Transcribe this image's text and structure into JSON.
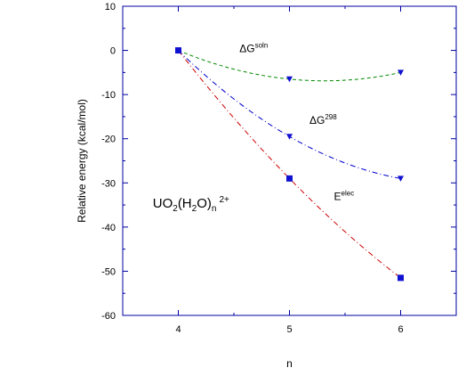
{
  "chart_data": {
    "type": "scatter",
    "xlabel": "n",
    "ylabel": "Relative energy (kcal/mol)",
    "xlim": [
      3.5,
      6.5
    ],
    "ylim": [
      -60,
      10
    ],
    "x_ticks": [
      4,
      5,
      6
    ],
    "y_ticks": [
      10,
      0,
      -10,
      -20,
      -30,
      -40,
      -50,
      -60
    ],
    "grid": false,
    "legend": "none",
    "series": [
      {
        "x": [
          4,
          5,
          6
        ],
        "y": [
          0,
          -6.5,
          -5.0
        ],
        "marker": "triangle-down",
        "marker_color": "#1010d0",
        "line_color": "#008800",
        "line_style": "dashed"
      },
      {
        "x": [
          4,
          5,
          6
        ],
        "y": [
          0,
          -19.5,
          -29.0
        ],
        "marker": "triangle-down",
        "marker_color": "#1010d0",
        "line_color": "#0000cc",
        "line_style": "dash-dot"
      },
      {
        "x": [
          4,
          5,
          6
        ],
        "y": [
          0,
          -29.0,
          -51.5
        ],
        "marker": "square",
        "marker_color": "#1010d0",
        "line_color": "#cc0000",
        "line_style": "dash-dot"
      }
    ],
    "annotations": [
      {
        "base": "ΔG",
        "sup": "soln",
        "x": 4.55,
        "y": -0.4
      },
      {
        "base": "ΔG",
        "sup": "298",
        "x": 5.18,
        "y": -16.6
      },
      {
        "base": "E",
        "sup": "elec",
        "x": 5.4,
        "y": -33.9
      },
      {
        "base": "UO",
        "sub1": "2",
        "mid": "(H",
        "sub2": "2",
        "tail": "O)",
        "sub3": "n",
        "sup": "2+",
        "x": 3.77,
        "y": -35.6
      }
    ],
    "colors": {
      "axis": "#0000a0",
      "tick_labels": "#000000"
    }
  }
}
